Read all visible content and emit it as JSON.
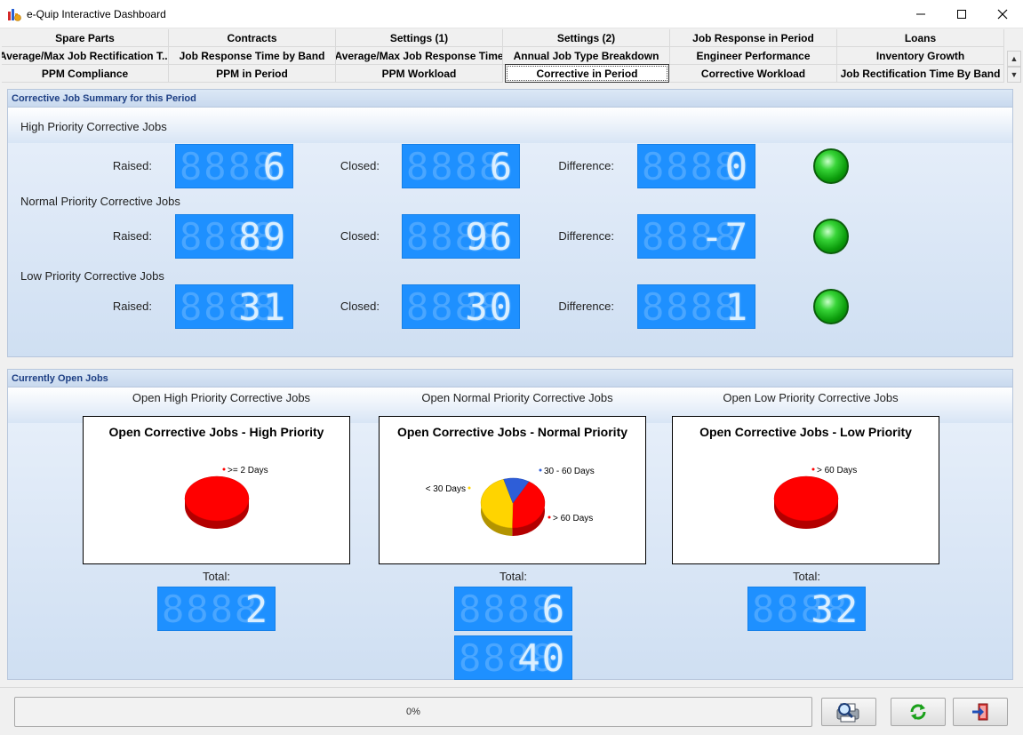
{
  "window": {
    "title": "e-Quip Interactive Dashboard"
  },
  "tabs": [
    [
      "Spare Parts",
      "Contracts",
      "Settings (1)",
      "Settings (2)",
      "Job Response in Period",
      "Loans"
    ],
    [
      "Average/Max Job Rectification T...",
      "Job Response Time by Band",
      "Average/Max Job Response Time",
      "Annual Job Type Breakdown",
      "Engineer Performance",
      "Inventory Growth"
    ],
    [
      "PPM Compliance",
      "PPM in Period",
      "PPM Workload",
      "Corrective in Period",
      "Corrective Workload",
      "Job Rectification Time By Band"
    ]
  ],
  "active_tab": "Corrective in Period",
  "summary": {
    "header": "Corrective Job Summary for this Period",
    "raised_label": "Raised:",
    "closed_label": "Closed:",
    "difference_label": "Difference:",
    "high": {
      "title": "High Priority Corrective Jobs",
      "raised": "6",
      "closed": "6",
      "difference": "0",
      "status_color": "#22c022"
    },
    "normal": {
      "title": "Normal Priority Corrective Jobs",
      "raised": "89",
      "closed": "96",
      "difference": "-7",
      "status_color": "#22c022"
    },
    "low": {
      "title": "Low Priority Corrective Jobs",
      "raised": "31",
      "closed": "30",
      "difference": "1",
      "status_color": "#22c022"
    }
  },
  "open_jobs": {
    "header": "Currently Open Jobs",
    "total_label": "Total:",
    "high": {
      "caption": "Open High Priority Corrective Jobs",
      "total": "2"
    },
    "normal": {
      "caption": "Open Normal Priority Corrective Jobs",
      "total": "6",
      "total_2": "40"
    },
    "low": {
      "caption": "Open Low Priority Corrective Jobs",
      "total": "32"
    }
  },
  "chart_data": [
    {
      "type": "pie",
      "title": "Open Corrective Jobs - High Priority",
      "labels": [
        ">= 2 Days"
      ],
      "values": [
        100
      ],
      "colors": [
        "#ff0000"
      ]
    },
    {
      "type": "pie",
      "title": "Open Corrective Jobs - Normal Priority",
      "labels": [
        "> 60 Days",
        "< 30 Days",
        "30 - 60 Days"
      ],
      "values": [
        42,
        45,
        13
      ],
      "colors": [
        "#ff0000",
        "#ffd400",
        "#2e5ed8"
      ]
    },
    {
      "type": "pie",
      "title": "Open Corrective Jobs - Low Priority",
      "labels": [
        "> 60 Days"
      ],
      "values": [
        100
      ],
      "colors": [
        "#ff0000"
      ]
    }
  ],
  "status": {
    "progress_text": "0%"
  },
  "icons": {
    "print": "print-preview-icon",
    "refresh": "refresh-icon",
    "exit": "exit-icon"
  }
}
